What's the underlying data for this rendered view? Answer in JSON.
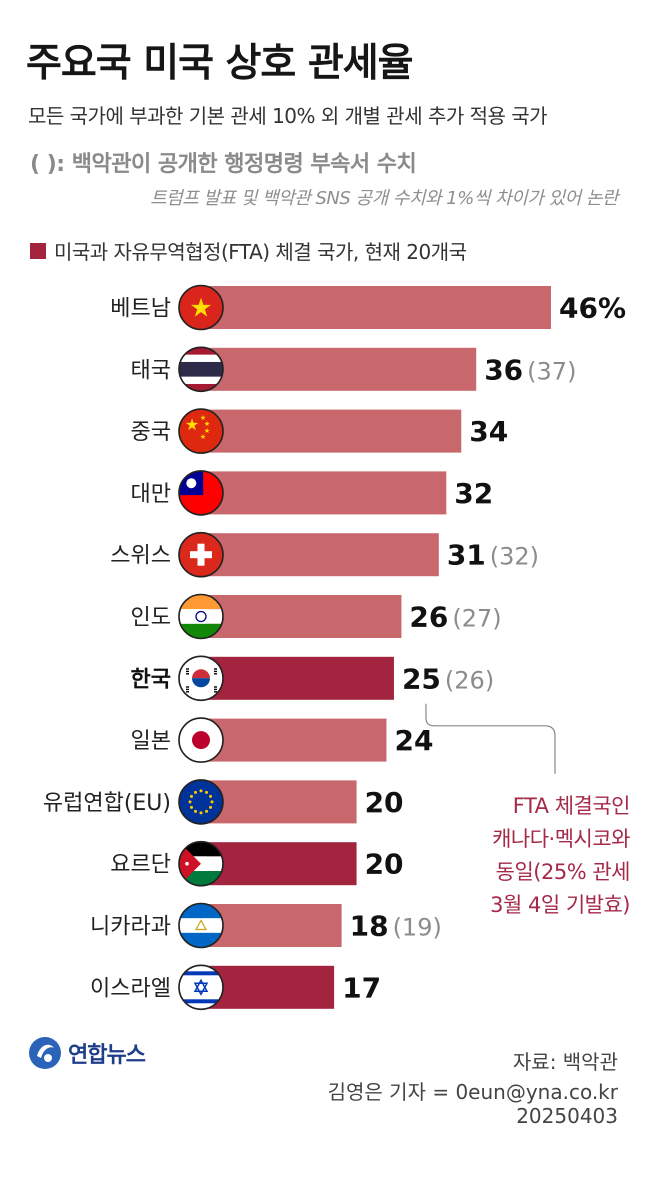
{
  "title": "주요국 미국 상호 관세율",
  "subtitle": "모든 국가에 부과한 기본 관세 10% 외 개별 관세 추가 적용 국가",
  "note": "(  ): 백악관이 공개한 행정명령 부속서 수치",
  "note_sub": "트럼프 발표 및 백악관 SNS 공개 수치와 1%씩 차이가 있어 논란",
  "legend": {
    "label": "미국과 자유무역협정(FTA) 체결 국가, 현재 20개국",
    "color": "#a3243f"
  },
  "colors": {
    "non_fta": "#c9686c",
    "fta": "#a3243f"
  },
  "chart_data": {
    "type": "bar",
    "orientation": "horizontal",
    "categories": [
      "베트남",
      "태국",
      "중국",
      "대만",
      "스위스",
      "인도",
      "한국",
      "일본",
      "유럽연합(EU)",
      "요르단",
      "니카라과",
      "이스라엘"
    ],
    "values": [
      46,
      36,
      34,
      32,
      31,
      26,
      25,
      24,
      20,
      20,
      18,
      17
    ],
    "value_labels": [
      "46%",
      "36",
      "34",
      "32",
      "31",
      "26",
      "25",
      "24",
      "20",
      "20",
      "18",
      "17"
    ],
    "annex_labels": [
      "",
      "(37)",
      "",
      "",
      "(32)",
      "(27)",
      "(26)",
      "",
      "",
      "",
      "(19)",
      ""
    ],
    "fta": [
      false,
      false,
      false,
      false,
      false,
      false,
      true,
      false,
      false,
      true,
      false,
      true
    ],
    "highlight": [
      "한국"
    ],
    "flags": [
      "vietnam-flag",
      "thailand-flag",
      "china-flag",
      "taiwan-flag",
      "switzerland-flag",
      "india-flag",
      "korea-flag",
      "japan-flag",
      "eu-flag",
      "jordan-flag",
      "nicaragua-flag",
      "israel-flag"
    ],
    "xlim": [
      0,
      46
    ],
    "grid": false
  },
  "callout": {
    "lines": [
      "FTA 체결국인",
      "캐나다·멕시코와",
      "동일(25% 관세",
      "3월 4일 기발효)"
    ]
  },
  "logo_text": "연합뉴스",
  "source": "자료: 백악관",
  "credit": "김영은 기자 = 0eun@yna.co.kr",
  "date": "20250403"
}
